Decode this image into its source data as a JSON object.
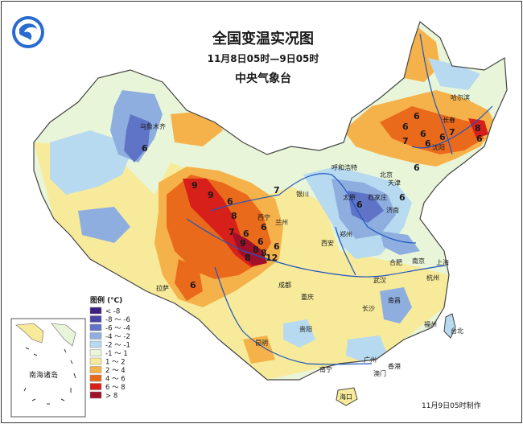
{
  "title": "全国变温实况图",
  "subtitle": "11月8日05时—9日05时",
  "agency": "中央气象台",
  "footer": "11月9日05时制作",
  "inset_label": "南海诸岛",
  "legend": {
    "title": "图例 (℃)",
    "items": [
      {
        "label": "< -8",
        "color": "#3a2080"
      },
      {
        "label": "-8 ～ -6",
        "color": "#4a46a8"
      },
      {
        "label": "-6 ～ -4",
        "color": "#5f74c6"
      },
      {
        "label": "-4 ～ -2",
        "color": "#8eaee0"
      },
      {
        "label": "-2 ～ -1",
        "color": "#b7daf0"
      },
      {
        "label": "-1 ～ 1",
        "color": "#e8f5d8"
      },
      {
        "label": "1 ～ 2",
        "color": "#f7ea9a"
      },
      {
        "label": "2 ～ 4",
        "color": "#f6b24a"
      },
      {
        "label": "4 ～ 6",
        "color": "#ea6a1c"
      },
      {
        "label": "6 ～ 8",
        "color": "#d8201b"
      },
      {
        "label": "> 8",
        "color": "#a0102a"
      }
    ]
  },
  "cities": [
    {
      "name": "乌鲁木齐"
    },
    {
      "name": "哈尔滨"
    },
    {
      "name": "长春"
    },
    {
      "name": "沈阳"
    },
    {
      "name": "呼和浩特"
    },
    {
      "name": "北京"
    },
    {
      "name": "天津"
    },
    {
      "name": "太原"
    },
    {
      "name": "石家庄"
    },
    {
      "name": "济南"
    },
    {
      "name": "银川"
    },
    {
      "name": "兰州"
    },
    {
      "name": "西宁"
    },
    {
      "name": "郑州"
    },
    {
      "name": "西安"
    },
    {
      "name": "南京"
    },
    {
      "name": "合肥"
    },
    {
      "name": "上海"
    },
    {
      "name": "杭州"
    },
    {
      "name": "武汉"
    },
    {
      "name": "成都"
    },
    {
      "name": "重庆"
    },
    {
      "name": "拉萨"
    },
    {
      "name": "长沙"
    },
    {
      "name": "南昌"
    },
    {
      "name": "福州"
    },
    {
      "name": "台北"
    },
    {
      "name": "贵阳"
    },
    {
      "name": "昆明"
    },
    {
      "name": "南宁"
    },
    {
      "name": "广州"
    },
    {
      "name": "香港"
    },
    {
      "name": "澳门"
    },
    {
      "name": "海口"
    }
  ],
  "values": [
    "6",
    "9",
    "9",
    "6",
    "8",
    "7",
    "6",
    "9",
    "8",
    "6",
    "6",
    "8",
    "8",
    "12",
    "6",
    "7",
    "6",
    "6",
    "7",
    "6",
    "6",
    "6",
    "6",
    "7",
    "8",
    "6",
    "6",
    "6",
    "6"
  ]
}
